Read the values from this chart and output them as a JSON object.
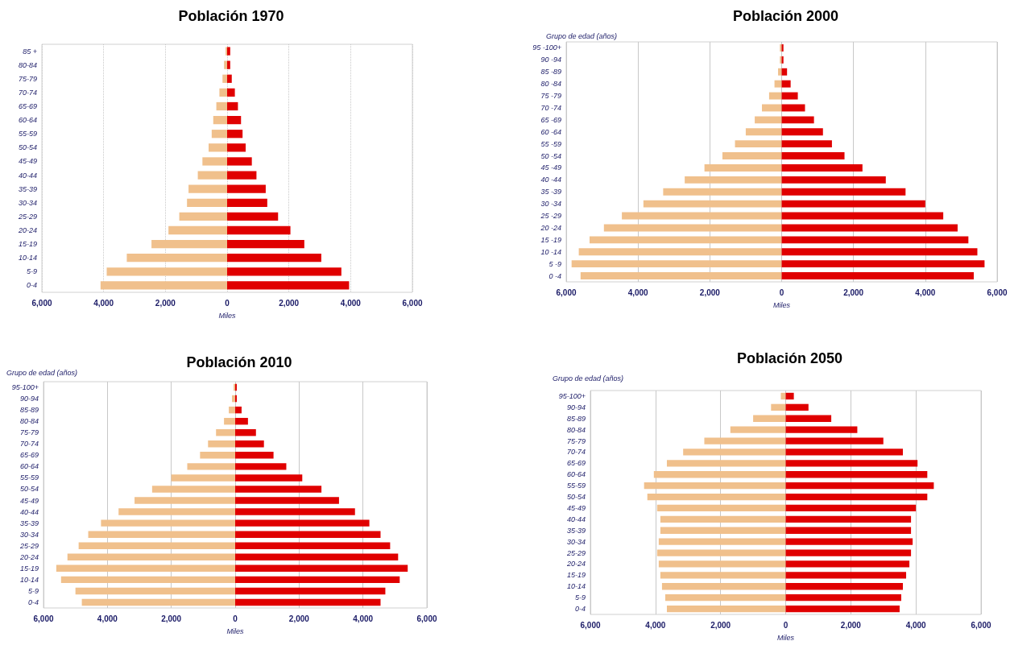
{
  "chart_data": [
    {
      "type": "bar",
      "title": "Población 1970",
      "xlabel": "Miles",
      "orientation": "horizontal",
      "stacked": true,
      "grid": "x",
      "categories": [
        "85 +",
        "80-84",
        "75-79",
        "70-74",
        "65-69",
        "60-64",
        "55-59",
        "50-54",
        "45-49",
        "40-44",
        "35-39",
        "30-34",
        "25-29",
        "20-24",
        "15-19",
        "10-14",
        "5-9",
        "0-4"
      ],
      "series": [
        {
          "color": "#f0c08c",
          "values": [
            -50,
            -100,
            -150,
            -250,
            -350,
            -450,
            -500,
            -600,
            -800,
            -950,
            -1250,
            -1300,
            -1550,
            -1900,
            -2450,
            -3250,
            -3900,
            -4100
          ]
        },
        {
          "color": "#e00000",
          "values": [
            100,
            100,
            150,
            250,
            350,
            450,
            500,
            600,
            800,
            950,
            1250,
            1300,
            1650,
            2050,
            2500,
            3050,
            3700,
            3950
          ]
        }
      ],
      "xlim": [
        -6000,
        6000
      ],
      "xticks": [
        {
          "value": -6000,
          "label": "6,000"
        },
        {
          "value": -4000,
          "label": "4,000"
        },
        {
          "value": -2000,
          "label": "2,000"
        },
        {
          "value": 0,
          "label": "0"
        },
        {
          "value": 2000,
          "label": "2,000"
        },
        {
          "value": 4000,
          "label": "4,000"
        },
        {
          "value": 6000,
          "label": "6,000"
        }
      ]
    },
    {
      "type": "bar",
      "title": "Población 2000",
      "xlabel": "Miles",
      "ylabel": "Grupo de edad (años)",
      "orientation": "horizontal",
      "stacked": true,
      "grid": "x",
      "categories": [
        "95 -100+",
        "90 -94",
        "85 -89",
        "80 -84",
        "75 -79",
        "70 -74",
        "65 -69",
        "60 -64",
        "55 -59",
        "50 -54",
        "45 -49",
        "40 -44",
        "35 -39",
        "30 -34",
        "25 -29",
        "20 -24",
        "15 -19",
        "10 -14",
        "5 -9",
        "0 -4"
      ],
      "series": [
        {
          "color": "#f0c08c",
          "values": [
            -50,
            -50,
            -100,
            -200,
            -350,
            -550,
            -750,
            -1000,
            -1300,
            -1650,
            -2150,
            -2700,
            -3300,
            -3850,
            -4450,
            -4950,
            -5350,
            -5650,
            -5850,
            -5600
          ]
        },
        {
          "color": "#e00000",
          "values": [
            50,
            50,
            150,
            250,
            450,
            650,
            900,
            1150,
            1400,
            1750,
            2250,
            2900,
            3450,
            4000,
            4500,
            4900,
            5200,
            5450,
            5650,
            5350
          ]
        }
      ],
      "xlim": [
        -6000,
        6000
      ],
      "xticks": [
        {
          "value": -6000,
          "label": "6,000"
        },
        {
          "value": -4000,
          "label": "4,000"
        },
        {
          "value": -2000,
          "label": "2,000"
        },
        {
          "value": 0,
          "label": "0"
        },
        {
          "value": 2000,
          "label": "2,000"
        },
        {
          "value": 4000,
          "label": "4,000"
        },
        {
          "value": 6000,
          "label": "6,000"
        }
      ]
    },
    {
      "type": "bar",
      "title": "Población 2010",
      "xlabel": "Miles",
      "ylabel": "Grupo de edad (años)",
      "orientation": "horizontal",
      "stacked": true,
      "grid": "x",
      "categories": [
        "95-100+",
        "90-94",
        "85-89",
        "80-84",
        "75-79",
        "70-74",
        "65-69",
        "60-64",
        "55-59",
        "50-54",
        "45-49",
        "40-44",
        "35-39",
        "30-34",
        "25-29",
        "20-24",
        "15-19",
        "10-14",
        "5-9",
        "0-4"
      ],
      "series": [
        {
          "color": "#f0c08c",
          "values": [
            -50,
            -100,
            -200,
            -350,
            -600,
            -850,
            -1100,
            -1500,
            -2000,
            -2600,
            -3150,
            -3650,
            -4200,
            -4600,
            -4900,
            -5250,
            -5600,
            -5450,
            -5000,
            -4800
          ]
        },
        {
          "color": "#e00000",
          "values": [
            50,
            50,
            200,
            400,
            650,
            900,
            1200,
            1600,
            2100,
            2700,
            3250,
            3750,
            4200,
            4550,
            4850,
            5100,
            5400,
            5150,
            4700,
            4550
          ]
        }
      ],
      "xlim": [
        -6000,
        6000
      ],
      "xticks": [
        {
          "value": -6000,
          "label": "6,000"
        },
        {
          "value": -4000,
          "label": "4,000"
        },
        {
          "value": -2000,
          "label": "2,000"
        },
        {
          "value": 0,
          "label": "0"
        },
        {
          "value": 2000,
          "label": "2,000"
        },
        {
          "value": 4000,
          "label": "4,000"
        },
        {
          "value": 6000,
          "label": "6,000"
        }
      ]
    },
    {
      "type": "bar",
      "title": "Población 2050",
      "xlabel": "Miles",
      "ylabel": "Grupo de edad (años)",
      "orientation": "horizontal",
      "stacked": true,
      "grid": "x",
      "categories": [
        "95-100+",
        "90-94",
        "85-89",
        "80-84",
        "75-79",
        "70-74",
        "65-69",
        "60-64",
        "55-59",
        "50-54",
        "45-49",
        "40-44",
        "35-39",
        "30-34",
        "25-29",
        "20-24",
        "15-19",
        "10-14",
        "5-9",
        "0-4"
      ],
      "series": [
        {
          "color": "#f0c08c",
          "values": [
            -150,
            -450,
            -1000,
            -1700,
            -2500,
            -3150,
            -3650,
            -4050,
            -4350,
            -4250,
            -3950,
            -3850,
            -3850,
            -3900,
            -3950,
            -3900,
            -3850,
            -3800,
            -3700,
            -3650
          ]
        },
        {
          "color": "#e00000",
          "values": [
            250,
            700,
            1400,
            2200,
            3000,
            3600,
            4050,
            4350,
            4550,
            4350,
            4000,
            3850,
            3850,
            3900,
            3850,
            3800,
            3700,
            3600,
            3550,
            3500
          ]
        }
      ],
      "xlim": [
        -6000,
        6000
      ],
      "xticks": [
        {
          "value": -6000,
          "label": "6,000"
        },
        {
          "value": -4000,
          "label": "4,000"
        },
        {
          "value": -2000,
          "label": "2,000"
        },
        {
          "value": 0,
          "label": "0"
        },
        {
          "value": 2000,
          "label": "2,000"
        },
        {
          "value": 4000,
          "label": "4,000"
        },
        {
          "value": 6000,
          "label": "6,000"
        }
      ]
    }
  ]
}
